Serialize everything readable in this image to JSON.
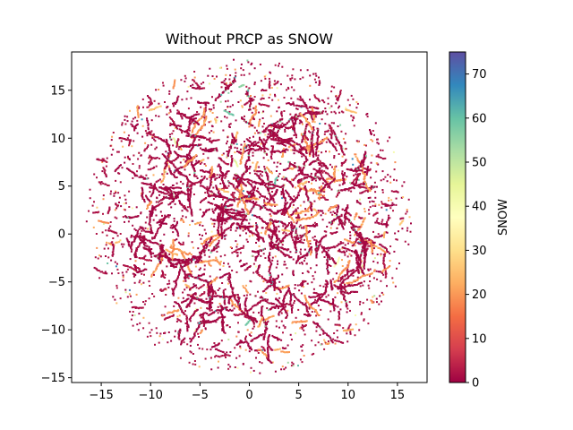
{
  "chart_data": {
    "type": "scatter",
    "title": "Without PRCP as SNOW",
    "xlabel": "",
    "ylabel": "",
    "xlim": [
      -18,
      18
    ],
    "ylim": [
      -15.5,
      19
    ],
    "xticks": [
      -15,
      -10,
      -5,
      0,
      5,
      10,
      15
    ],
    "yticks": [
      -15,
      -10,
      -5,
      0,
      5,
      10,
      15
    ],
    "xtick_labels": [
      "−15",
      "−10",
      "−5",
      "0",
      "5",
      "10",
      "15"
    ],
    "ytick_labels": [
      "−15",
      "−10",
      "−5",
      "0",
      "5",
      "10",
      "15"
    ],
    "grid": false,
    "colorbar": {
      "label": "SNOW",
      "min": 0,
      "max": 75,
      "ticks": [
        0,
        10,
        20,
        30,
        40,
        50,
        60,
        70
      ],
      "tick_labels": [
        "0",
        "10",
        "20",
        "30",
        "40",
        "50",
        "60",
        "70"
      ],
      "colormap": "Spectral",
      "stops": [
        "#9e0142",
        "#d53e4f",
        "#f46d43",
        "#fdae61",
        "#fee08b",
        "#ffffbf",
        "#e6f598",
        "#abdda4",
        "#66c2a5",
        "#3288bd",
        "#5e4fa2"
      ]
    },
    "points_summary": "Dense cloud of points within a disk of radius ~16.5 centered near (0, 1.5); most points have SNOW near 0 (dark red), many clusters near 20–25 (orange), few scattered higher values (green/blue).",
    "cluster_centers": [
      [
        -5.0,
        12.5
      ],
      [
        -5.0,
        10.0
      ],
      [
        -3.0,
        7.0
      ],
      [
        -7.0,
        4.5
      ],
      [
        -3.5,
        4.0
      ],
      [
        -1.0,
        5.5
      ],
      [
        2.0,
        8.0
      ],
      [
        4.5,
        9.0
      ],
      [
        5.0,
        6.0
      ],
      [
        8.0,
        4.5
      ],
      [
        7.5,
        7.5
      ],
      [
        10.5,
        6.5
      ],
      [
        -10.5,
        4.0
      ],
      [
        -11.0,
        0.5
      ],
      [
        -8.5,
        -1.5
      ],
      [
        -6.0,
        -3.0
      ],
      [
        -3.0,
        -1.0
      ],
      [
        0.0,
        1.5
      ],
      [
        2.0,
        -0.5
      ],
      [
        4.5,
        1.5
      ],
      [
        6.5,
        -2.0
      ],
      [
        9.0,
        0.5
      ],
      [
        12.0,
        0.0
      ],
      [
        -4.0,
        -6.5
      ],
      [
        -1.0,
        -7.5
      ],
      [
        3.0,
        -5.5
      ],
      [
        5.5,
        -8.0
      ],
      [
        9.0,
        -5.5
      ],
      [
        -6.0,
        -8.5
      ],
      [
        1.0,
        -10.5
      ],
      [
        -2.5,
        2.5
      ],
      [
        3.0,
        4.0
      ],
      [
        -8.0,
        8.0
      ],
      [
        0.5,
        10.5
      ],
      [
        6.0,
        11.5
      ]
    ]
  }
}
